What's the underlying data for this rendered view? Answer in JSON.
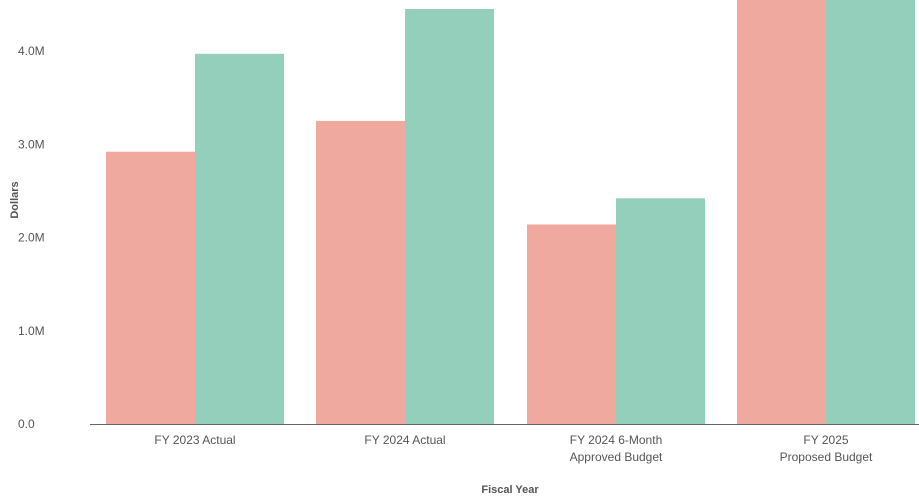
{
  "chart_data": {
    "type": "bar",
    "xlabel": "Fiscal Year",
    "ylabel": "Dollars",
    "ylim": [
      0,
      4600000
    ],
    "y_ticks": [
      {
        "value": 0,
        "label": "0.0"
      },
      {
        "value": 1000000,
        "label": "1.0M"
      },
      {
        "value": 2000000,
        "label": "2.0M"
      },
      {
        "value": 3000000,
        "label": "3.0M"
      },
      {
        "value": 4000000,
        "label": "4.0M"
      }
    ],
    "categories": [
      [
        "FY 2023 Actual"
      ],
      [
        "FY 2024 Actual"
      ],
      [
        "FY 2024 6-Month",
        "Approved Budget"
      ],
      [
        "FY 2025",
        "Proposed Budget"
      ]
    ],
    "series": [
      {
        "color": "#f0a99e",
        "values": [
          2920000,
          3250000,
          2140000,
          4600000
        ]
      },
      {
        "color": "#93cfba",
        "values": [
          3970000,
          4450000,
          2420000,
          4600000
        ]
      }
    ],
    "grid": false,
    "legend": "none"
  }
}
